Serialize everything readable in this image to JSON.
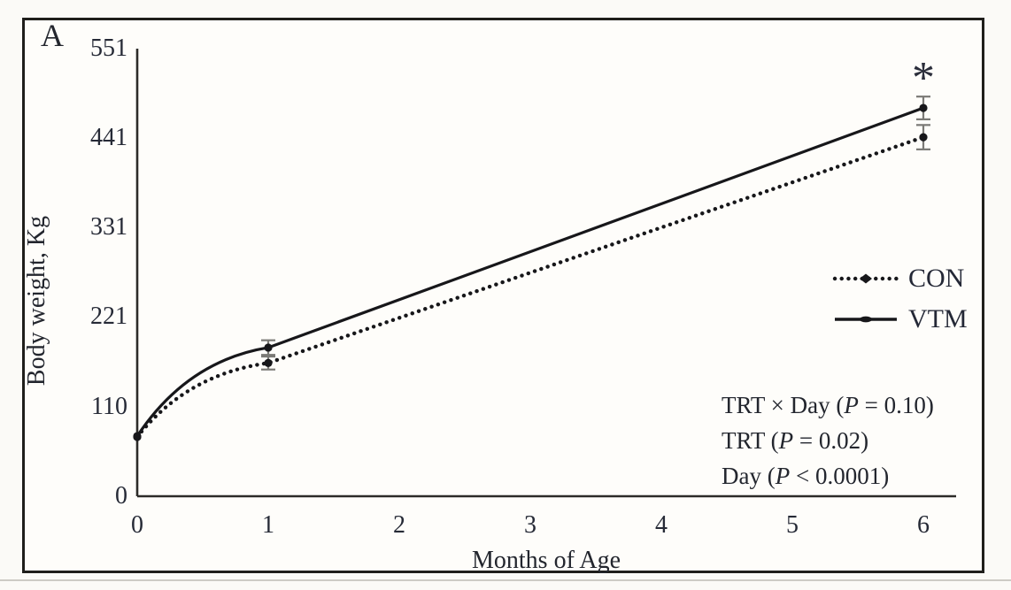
{
  "figure": {
    "panel_label": "A",
    "significance_marker": "*"
  },
  "y_axis": {
    "title": "Body weight, Kg",
    "ticks": [
      0,
      110,
      221,
      331,
      441,
      551
    ],
    "tick_labels": [
      "0",
      "110",
      "221",
      "331",
      "441",
      "551"
    ]
  },
  "x_axis": {
    "title": "Months of Age",
    "ticks": [
      0,
      1,
      2,
      3,
      4,
      5,
      6
    ],
    "tick_labels": [
      "0",
      "1",
      "2",
      "3",
      "4",
      "5",
      "6"
    ]
  },
  "legend": {
    "items": [
      {
        "label": "CON",
        "style": "dotted"
      },
      {
        "label": "VTM",
        "style": "solid"
      }
    ]
  },
  "stats": {
    "lines": [
      {
        "pre": "TRT × Day (",
        "p": "P",
        "post": " = 0.10)"
      },
      {
        "pre": "TRT (",
        "p": "P",
        "post": " = 0.02)"
      },
      {
        "pre": "Day (",
        "p": "P",
        "post": " < 0.0001)"
      }
    ]
  },
  "colors": {
    "line_ink": "#17171a",
    "axis_ink": "#2c2b28",
    "error_bar": "#7b7a76",
    "text_ink": "#23262e"
  },
  "chart_data": {
    "type": "line",
    "title": "",
    "xlabel": "Months of Age",
    "ylabel": "Body weight, Kg",
    "x": [
      0,
      1,
      6
    ],
    "xlim": [
      0,
      6
    ],
    "ylim": [
      0,
      551
    ],
    "grid": false,
    "legend_position": "right",
    "series": [
      {
        "name": "CON",
        "style": "dotted",
        "values": [
          73,
          164,
          442
        ],
        "errors": [
          0,
          8,
          15
        ]
      },
      {
        "name": "VTM",
        "style": "solid",
        "values": [
          74,
          183,
          478
        ],
        "errors": [
          0,
          9,
          14
        ]
      }
    ],
    "annotations": [
      {
        "text": "*",
        "x": 6,
        "series": "VTM",
        "meaning_visible_text_only": "*"
      }
    ]
  }
}
